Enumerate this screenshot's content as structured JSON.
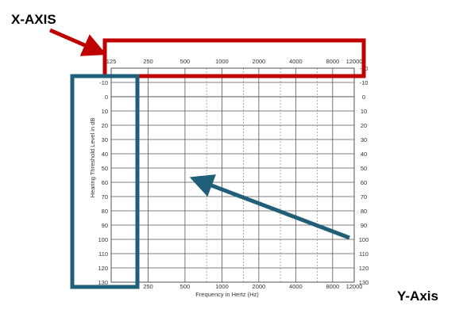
{
  "annotations": {
    "x_axis_label": "X-AXIS",
    "y_axis_label": "Y-Axis",
    "highlight_color_x": "#c00000",
    "highlight_color_y": "#1f5f7a",
    "arrow_color_red": "#c00000",
    "arrow_color_blue": "#1f5f7a"
  },
  "chart_data": {
    "type": "audiogram",
    "title": "",
    "xlabel": "Frequency in Hertz (Hz)",
    "ylabel": "Hearing Threshold Level in dB",
    "x_scale": "log",
    "x_top_ticks": [
      "125",
      "250",
      "500",
      "1000",
      "2000",
      "4000",
      "8000",
      "12000"
    ],
    "x_bottom_ticks": [
      "250",
      "500",
      "1000",
      "2000",
      "4000",
      "8000",
      "12000"
    ],
    "y_ticks": [
      "-10",
      "0",
      "10",
      "20",
      "30",
      "40",
      "50",
      "60",
      "70",
      "80",
      "90",
      "100",
      "110",
      "120",
      "130"
    ],
    "y_right_ticks": [
      "-20",
      "-10",
      "0",
      "10",
      "20",
      "30",
      "40",
      "50",
      "60",
      "70",
      "80",
      "90",
      "100",
      "110",
      "120",
      "130"
    ],
    "ylim": [
      -20,
      130
    ],
    "y_inverted": true,
    "grid": true,
    "series": []
  }
}
